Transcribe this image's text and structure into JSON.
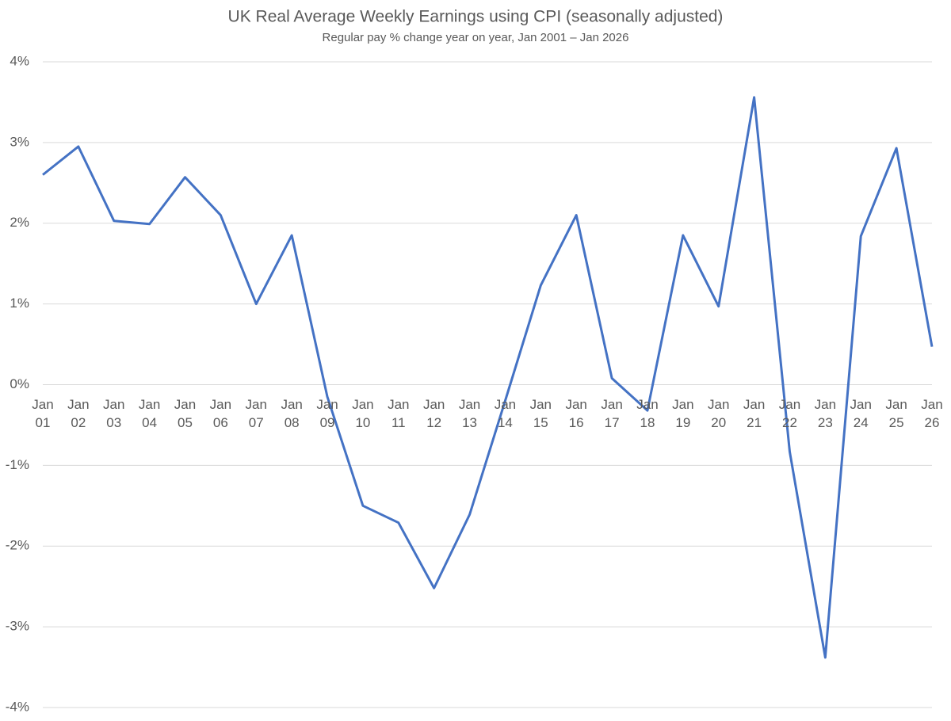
{
  "chart_data": {
    "type": "line",
    "title": "UK Real Average Weekly Earnings using CPI (seasonally adjusted)",
    "subtitle": "Regular pay % change year on year, Jan 2001 – Jan 2026",
    "categories": [
      "Jan 01",
      "Jan 02",
      "Jan 03",
      "Jan 04",
      "Jan 05",
      "Jan 06",
      "Jan 07",
      "Jan 08",
      "Jan 09",
      "Jan 10",
      "Jan 11",
      "Jan 12",
      "Jan 13",
      "Jan 14",
      "Jan 15",
      "Jan 16",
      "Jan 17",
      "Jan 18",
      "Jan 19",
      "Jan 20",
      "Jan 21",
      "Jan 22",
      "Jan 23",
      "Jan 24",
      "Jan 25",
      "Jan 26"
    ],
    "series": [
      {
        "color": "#4472c4",
        "values": [
          2.6,
          2.95,
          2.03,
          1.99,
          2.57,
          2.1,
          1.0,
          1.85,
          -0.15,
          -1.5,
          -1.71,
          -2.52,
          -1.61,
          -0.2,
          1.23,
          2.1,
          0.08,
          -0.32,
          1.85,
          0.97,
          3.56,
          -0.83,
          -3.38,
          1.84,
          2.93,
          0.47
        ]
      }
    ],
    "ylim": [
      -4,
      4
    ],
    "yticks": [
      {
        "value": -4,
        "label": "-4%"
      },
      {
        "value": -3,
        "label": "-3%"
      },
      {
        "value": -2,
        "label": "-2%"
      },
      {
        "value": -1,
        "label": "-1%"
      },
      {
        "value": 0,
        "label": "0%"
      },
      {
        "value": 1,
        "label": "1%"
      },
      {
        "value": 2,
        "label": "2%"
      },
      {
        "value": 3,
        "label": "3%"
      },
      {
        "value": 4,
        "label": "4%"
      }
    ],
    "grid": true
  }
}
